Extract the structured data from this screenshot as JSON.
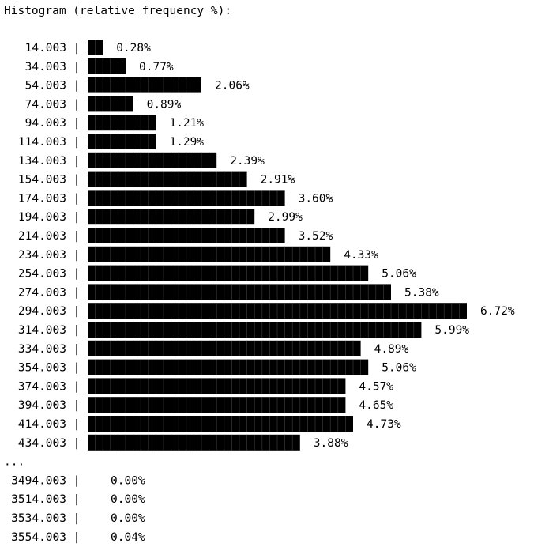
{
  "chart_data": {
    "type": "bar",
    "orientation": "horizontal",
    "title": "Histogram (relative frequency %):",
    "categories": [
      "14.003",
      "34.003",
      "54.003",
      "74.003",
      "94.003",
      "114.003",
      "134.003",
      "154.003",
      "174.003",
      "194.003",
      "214.003",
      "234.003",
      "254.003",
      "274.003",
      "294.003",
      "314.003",
      "334.003",
      "354.003",
      "374.003",
      "394.003",
      "414.003",
      "434.003"
    ],
    "values": [
      0.28,
      0.77,
      2.06,
      0.89,
      1.21,
      1.29,
      2.39,
      2.91,
      3.6,
      2.99,
      3.52,
      4.33,
      5.06,
      5.38,
      6.72,
      5.99,
      4.89,
      5.06,
      4.57,
      4.65,
      4.73,
      3.88
    ],
    "value_labels": [
      "0.28%",
      "0.77%",
      "2.06%",
      "0.89%",
      "1.21%",
      "1.29%",
      "2.39%",
      "2.91%",
      "3.60%",
      "2.99%",
      "3.52%",
      "4.33%",
      "5.06%",
      "5.38%",
      "6.72%",
      "5.99%",
      "4.89%",
      "5.06%",
      "4.57%",
      "4.65%",
      "4.73%",
      "3.88%"
    ],
    "bar_segments": [
      2,
      5,
      15,
      6,
      9,
      9,
      17,
      21,
      26,
      22,
      26,
      32,
      37,
      40,
      50,
      44,
      36,
      37,
      34,
      34,
      35,
      28
    ],
    "ellipsis": "...",
    "tail_categories": [
      "3494.003",
      "3514.003",
      "3534.003",
      "3554.003"
    ],
    "tail_values": [
      0.0,
      0.0,
      0.0,
      0.04
    ],
    "tail_value_labels": [
      "0.00%",
      "0.00%",
      "0.00%",
      "0.04%"
    ],
    "separator": "|",
    "bar_color": "#000000",
    "segment_line_color": "#3a3a3a",
    "background": "#ffffff"
  }
}
